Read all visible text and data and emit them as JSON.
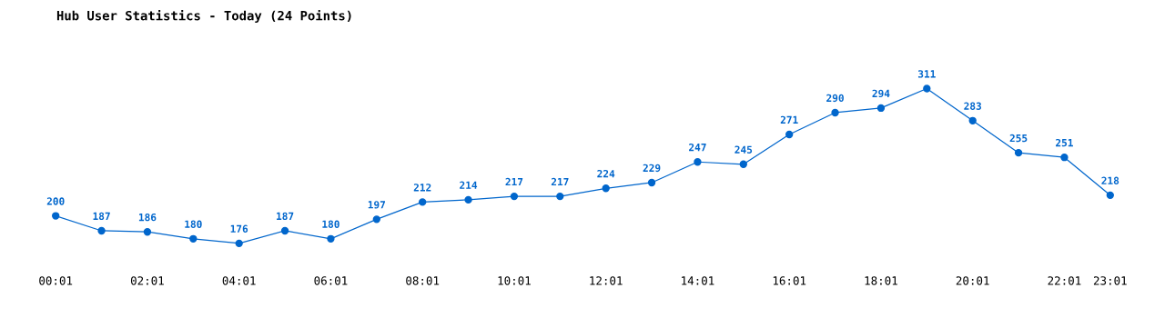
{
  "chart_data": {
    "type": "line",
    "title": "Hub User Statistics - Today (24 Points)",
    "categories": [
      "00:01",
      null,
      "02:01",
      null,
      "04:01",
      null,
      "06:01",
      null,
      "08:01",
      null,
      "10:01",
      null,
      "12:01",
      null,
      "14:01",
      null,
      "16:01",
      null,
      "18:01",
      null,
      "20:01",
      null,
      "22:01",
      "23:01"
    ],
    "series": [
      {
        "color": "#0066cc",
        "values": [
          200,
          187,
          186,
          180,
          176,
          187,
          180,
          197,
          212,
          214,
          217,
          217,
          224,
          229,
          247,
          245,
          271,
          290,
          294,
          311,
          283,
          255,
          251,
          218
        ]
      }
    ],
    "tick_labels": "x",
    "data_labels": true,
    "marker": "circle",
    "line_style": "solid",
    "grid": false,
    "legend": false
  }
}
